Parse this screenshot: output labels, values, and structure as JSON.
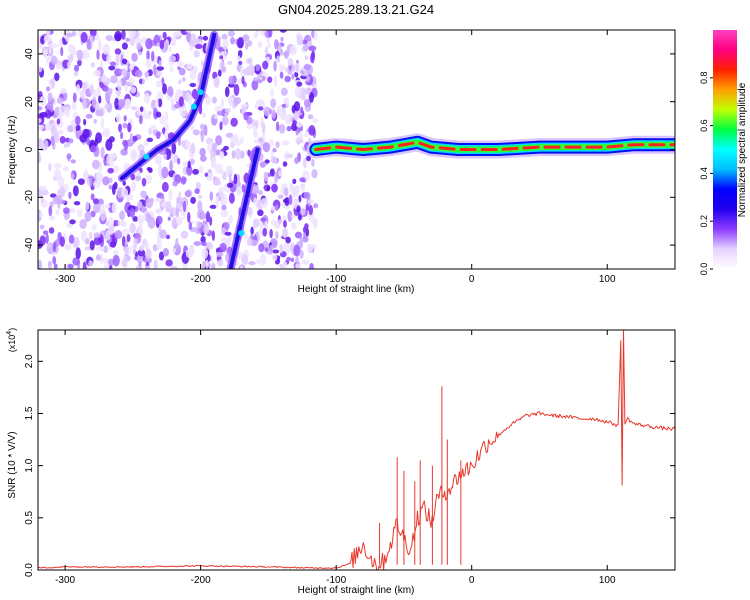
{
  "title": "GN04.2025.289.13.21.G24",
  "chart_data": [
    {
      "type": "heatmap",
      "name": "spectrogram",
      "xlabel": "Height of straight line (km)",
      "ylabel": "Frequency (Hz)",
      "xlim": [
        -320,
        150
      ],
      "ylim": [
        -50,
        50
      ],
      "xticks": [
        -300,
        -200,
        -100,
        0,
        100
      ],
      "yticks": [
        -40,
        -20,
        0,
        20,
        40
      ],
      "colorbar": {
        "label": "Normalized spectral amplitude",
        "range": [
          0,
          1
        ],
        "ticks": [
          0.0,
          0.2,
          0.4,
          0.6,
          0.8
        ],
        "colors": [
          "#ffffff",
          "#e6d2ff",
          "#8c3cff",
          "#2200ee",
          "#0000ff",
          "#00bfff",
          "#00ffff",
          "#00ff40",
          "#c0ff00",
          "#ffa000",
          "#ff2000",
          "#ff0080",
          "#ff40c0"
        ]
      },
      "noise_region": {
        "x": [
          -320,
          -115
        ],
        "y": [
          -50,
          50
        ]
      },
      "features": [
        {
          "name": "diagonal-streak-1",
          "points": [
            [
              -258,
              -12
            ],
            [
              -245,
              -6
            ],
            [
              -232,
              0
            ],
            [
              -220,
              4
            ],
            [
              -208,
              12
            ],
            [
              -200,
              22
            ],
            [
              -195,
              35
            ],
            [
              -190,
              48
            ]
          ]
        },
        {
          "name": "diagonal-streak-2",
          "points": [
            [
              -178,
              -50
            ],
            [
              -174,
              -40
            ],
            [
              -170,
              -30
            ],
            [
              -166,
              -20
            ],
            [
              -162,
              -10
            ],
            [
              -158,
              0
            ]
          ]
        },
        {
          "name": "main-band",
          "points": [
            [
              -115,
              0
            ],
            [
              -100,
              1
            ],
            [
              -80,
              0
            ],
            [
              -60,
              1
            ],
            [
              -40,
              3
            ],
            [
              -30,
              1
            ],
            [
              -10,
              0
            ],
            [
              0,
              0
            ],
            [
              20,
              0
            ],
            [
              50,
              1
            ],
            [
              80,
              1
            ],
            [
              100,
              1
            ],
            [
              120,
              2
            ],
            [
              150,
              2
            ]
          ]
        }
      ]
    },
    {
      "type": "line",
      "name": "snr",
      "xlabel": "Height of straight line (km)",
      "ylabel": "SNR (10 * V/V)",
      "multiplier": "(x10^4)",
      "multiplier_base": "(x10",
      "multiplier_exp": "4",
      "xlim": [
        -320,
        150
      ],
      "ylim": [
        0,
        2.3
      ],
      "xticks": [
        -300,
        -200,
        -100,
        0,
        100
      ],
      "yticks": [
        0.0,
        0.5,
        1.0,
        1.5,
        2.0
      ],
      "color": "#e8382c",
      "series": [
        {
          "name": "SNR",
          "x": [
            -320,
            -300,
            -250,
            -200,
            -150,
            -120,
            -100,
            -90,
            -85,
            -80,
            -75,
            -70,
            -65,
            -60,
            -55,
            -50,
            -45,
            -40,
            -35,
            -30,
            -25,
            -20,
            -15,
            -10,
            -5,
            0,
            5,
            10,
            20,
            30,
            40,
            50,
            60,
            70,
            80,
            90,
            100,
            105,
            108,
            110,
            111,
            112,
            113,
            115,
            120,
            130,
            140,
            150
          ],
          "y": [
            0.02,
            0.03,
            0.03,
            0.04,
            0.03,
            0.02,
            0.02,
            0.06,
            0.15,
            0.25,
            0.12,
            0.05,
            0.08,
            0.25,
            0.45,
            0.3,
            0.2,
            0.5,
            0.6,
            0.45,
            0.7,
            0.75,
            0.8,
            0.9,
            0.95,
            1.0,
            1.1,
            1.2,
            1.3,
            1.4,
            1.48,
            1.5,
            1.48,
            1.47,
            1.45,
            1.45,
            1.42,
            1.4,
            1.38,
            2.2,
            0.8,
            2.3,
            1.4,
            1.45,
            1.4,
            1.38,
            1.36,
            1.35
          ]
        }
      ],
      "spikes": [
        {
          "x": -68,
          "y": 0.45
        },
        {
          "x": -55,
          "y": 1.08
        },
        {
          "x": -50,
          "y": 0.95
        },
        {
          "x": -42,
          "y": 0.85
        },
        {
          "x": -38,
          "y": 1.05
        },
        {
          "x": -29,
          "y": 1.0
        },
        {
          "x": -22,
          "y": 1.76
        },
        {
          "x": -18,
          "y": 1.25
        },
        {
          "x": -8,
          "y": 1.05
        }
      ]
    }
  ]
}
